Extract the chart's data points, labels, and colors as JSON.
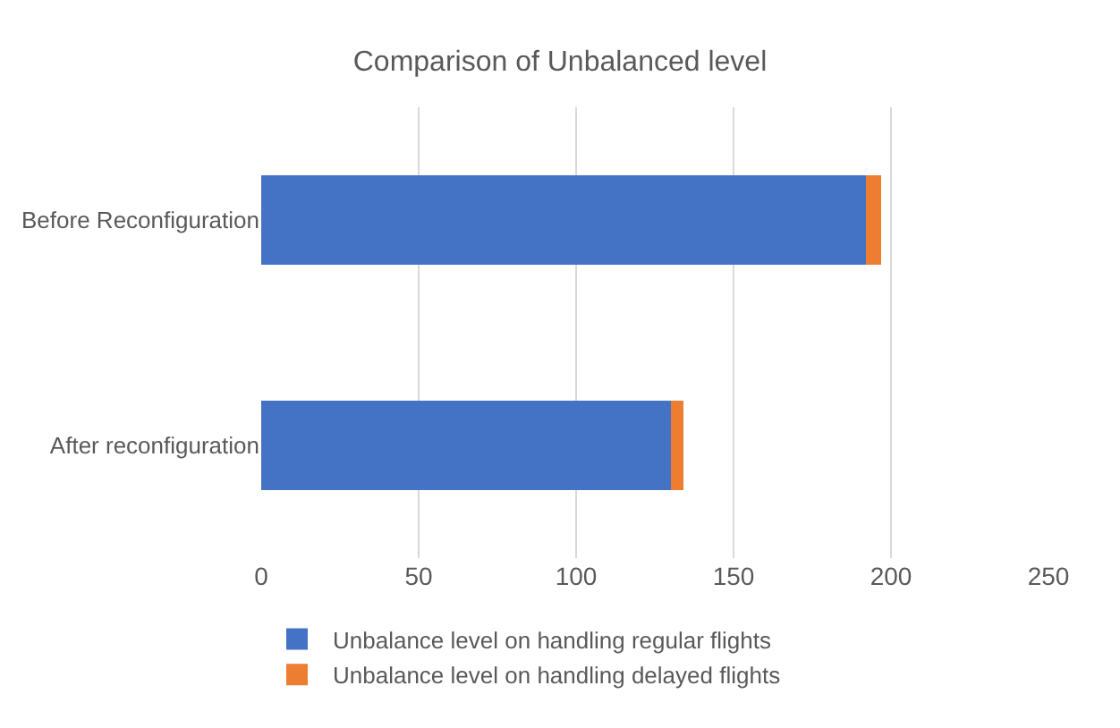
{
  "chart_data": {
    "type": "bar",
    "title": "Comparison of Unbalanced level",
    "orientation": "horizontal",
    "stacked": true,
    "categories": [
      "Before Reconfiguration",
      "After reconfiguration"
    ],
    "series": [
      {
        "name": "Unbalance level on handling regular flights",
        "color": "#4472c4",
        "values": [
          192,
          130
        ]
      },
      {
        "name": "Unbalance level on handling delayed flights",
        "color": "#ed7d31",
        "values": [
          5,
          4
        ]
      }
    ],
    "xlim": [
      0,
      250
    ],
    "xticks": [
      0,
      50,
      100,
      150,
      200,
      250
    ],
    "grid": "x",
    "legend": "bottom"
  }
}
